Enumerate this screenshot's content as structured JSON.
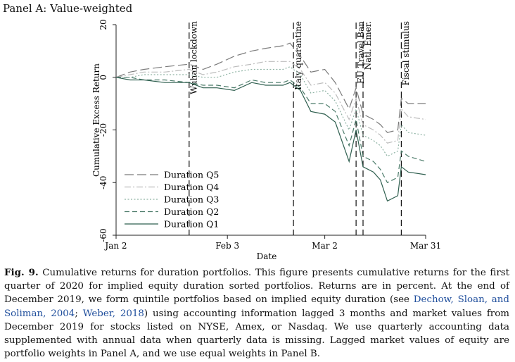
{
  "panel_label": "Panel A: Value-weighted",
  "chart_data": {
    "type": "line",
    "title": "",
    "xlabel": "Date",
    "ylabel": "Cumulative Excess Return",
    "xlim": [
      "2020-01-02",
      "2020-03-31"
    ],
    "ylim": [
      -60,
      20
    ],
    "x_ticks": [
      {
        "date": "2020-01-02",
        "label": "Jan 2"
      },
      {
        "date": "2020-02-03",
        "label": "Feb 3"
      },
      {
        "date": "2020-03-02",
        "label": "Mar 2"
      },
      {
        "date": "2020-03-31",
        "label": "Mar 31"
      }
    ],
    "y_ticks": [
      20,
      0,
      -20,
      -40,
      -60
    ],
    "grid": false,
    "legend_position": "lower-left",
    "events": [
      {
        "date": "2020-01-23",
        "label": "Wuhan lockdown"
      },
      {
        "date": "2020-02-22",
        "label": "Italy quarantine"
      },
      {
        "date": "2020-03-11",
        "label": "EU Travel Ban"
      },
      {
        "date": "2020-03-13",
        "label": "Natl. Emer."
      },
      {
        "date": "2020-03-24",
        "label": "Fiscal stimulus"
      }
    ],
    "x": [
      "2020-01-02",
      "2020-01-06",
      "2020-01-10",
      "2020-01-16",
      "2020-01-23",
      "2020-01-27",
      "2020-01-31",
      "2020-02-05",
      "2020-02-10",
      "2020-02-14",
      "2020-02-19",
      "2020-02-21",
      "2020-02-24",
      "2020-02-27",
      "2020-03-02",
      "2020-03-05",
      "2020-03-09",
      "2020-03-11",
      "2020-03-13",
      "2020-03-16",
      "2020-03-18",
      "2020-03-20",
      "2020-03-23",
      "2020-03-24",
      "2020-03-26",
      "2020-03-31"
    ],
    "series": [
      {
        "name": "Duration Q5",
        "dash": "long",
        "color": "#7a7a7a",
        "values": [
          0,
          2,
          3,
          4,
          5,
          3,
          5,
          8,
          10,
          11,
          12,
          13,
          8,
          2,
          3,
          -2,
          -12,
          -4,
          -14,
          -16,
          -18,
          -21,
          -20,
          -8,
          -10,
          -10
        ]
      },
      {
        "name": "Duration Q4",
        "dash": "dashdot",
        "color": "#bdbdbd",
        "values": [
          0,
          1,
          2,
          2,
          3,
          1,
          2,
          4,
          5,
          6,
          6,
          6,
          3,
          -3,
          -2,
          -6,
          -16,
          -8,
          -18,
          -20,
          -22,
          -25,
          -24,
          -12,
          -15,
          -16
        ]
      },
      {
        "name": "Duration Q3",
        "dash": "dotted",
        "color": "#8fb3a4",
        "values": [
          0,
          0,
          1,
          1,
          1,
          0,
          0,
          2,
          3,
          3,
          3,
          4,
          1,
          -6,
          -5,
          -9,
          -20,
          -12,
          -22,
          -24,
          -26,
          -30,
          -28,
          -18,
          -21,
          -22
        ]
      },
      {
        "name": "Duration Q2",
        "dash": "medium",
        "color": "#4a7a68",
        "values": [
          0,
          0,
          -1,
          -1,
          -2,
          -3,
          -3,
          -4,
          -1,
          -2,
          -2,
          -1,
          -4,
          -10,
          -10,
          -13,
          -26,
          -16,
          -30,
          -32,
          -35,
          -40,
          -38,
          -28,
          -30,
          -32
        ]
      },
      {
        "name": "Duration Q1",
        "dash": "solid",
        "color": "#2f5f4f",
        "values": [
          0,
          -1,
          -1,
          -2,
          -2,
          -4,
          -4,
          -5,
          -2,
          -3,
          -3,
          -2,
          -5,
          -13,
          -14,
          -17,
          -32,
          -20,
          -34,
          -36,
          -39,
          -47,
          -45,
          -34,
          -36,
          -37
        ]
      }
    ]
  },
  "caption": {
    "lead": "Fig. 9.",
    "part1": " Cumulative returns for duration portfolios. This figure presents cumulative returns for the first quarter of 2020 for implied equity duration sorted portfolios. Returns are in percent. At the end of December 2019, we form quintile portfolios based on implied equity duration (see ",
    "ref1": "Dechow, Sloan, and Soliman, 2004",
    "part2": "; ",
    "ref2": "Weber, 2018",
    "part3": ") using accounting information lagged 3 months and market values from December 2019 for stocks listed on NYSE, Amex, or Nasdaq. We use quarterly accounting data supplemented with annual data when quarterly data is missing. Lagged market values of equity are portfolio weights in Panel A, and we use equal weights in Panel B."
  }
}
